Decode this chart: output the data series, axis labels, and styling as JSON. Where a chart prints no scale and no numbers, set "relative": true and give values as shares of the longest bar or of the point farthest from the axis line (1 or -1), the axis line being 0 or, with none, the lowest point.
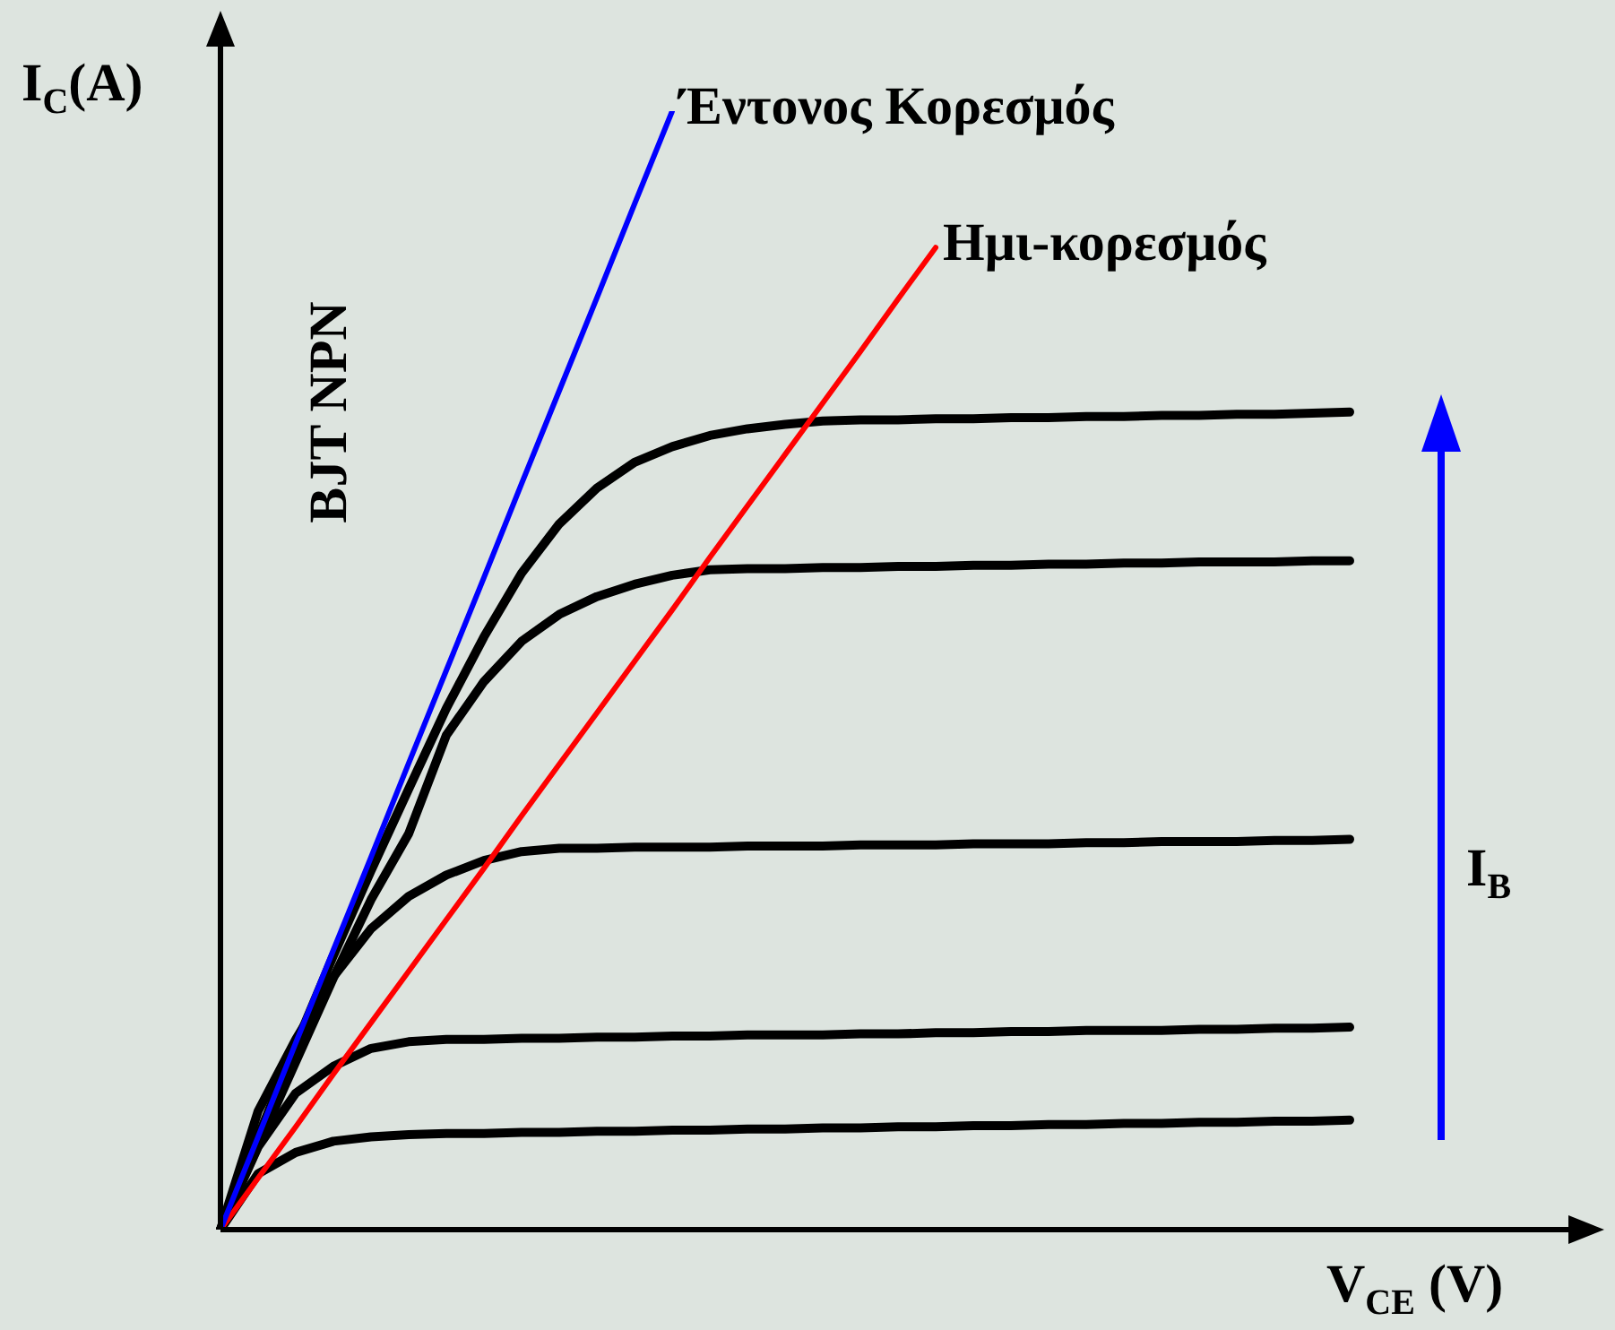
{
  "chart_data": {
    "type": "line",
    "relative": true,
    "xlabel": "V$_{CE}$ (V)",
    "ylabel": "I$_{C}$(A)",
    "legend": false,
    "tick_labels": false,
    "marker": "none",
    "categories": [
      null,
      null,
      null,
      null,
      null,
      null,
      null,
      null,
      null,
      null,
      null,
      null,
      null,
      null,
      null,
      null,
      null,
      null,
      null,
      null,
      null,
      null,
      null,
      null,
      null,
      null,
      null,
      null,
      null,
      null,
      null
    ],
    "series": [
      {
        "color": "#000000",
        "values": [
          0,
          0.083,
          0.165,
          0.245,
          0.321,
          0.394,
          0.466,
          0.53,
          0.587,
          0.631,
          0.663,
          0.686,
          0.7,
          0.71,
          0.716,
          0.72,
          0.723,
          0.724,
          0.724,
          0.725,
          0.725,
          0.726,
          0.726,
          0.727,
          0.727,
          0.728,
          0.728,
          0.729,
          0.729,
          0.73,
          0.731
        ]
      },
      {
        "color": "#000000",
        "values": [
          0,
          0.075,
          0.15,
          0.225,
          0.295,
          0.354,
          0.442,
          0.49,
          0.526,
          0.55,
          0.566,
          0.577,
          0.585,
          0.59,
          0.591,
          0.591,
          0.592,
          0.592,
          0.593,
          0.593,
          0.594,
          0.594,
          0.595,
          0.595,
          0.596,
          0.596,
          0.597,
          0.597,
          0.597,
          0.598,
          0.598
        ]
      },
      {
        "color": "#000000",
        "values": [
          0,
          0.106,
          0.17,
          0.226,
          0.269,
          0.298,
          0.317,
          0.33,
          0.338,
          0.341,
          0.341,
          0.342,
          0.342,
          0.342,
          0.343,
          0.343,
          0.343,
          0.344,
          0.344,
          0.344,
          0.345,
          0.345,
          0.345,
          0.346,
          0.346,
          0.347,
          0.347,
          0.347,
          0.348,
          0.348,
          0.349
        ]
      },
      {
        "color": "#000000",
        "values": [
          0,
          0.074,
          0.122,
          0.146,
          0.162,
          0.168,
          0.17,
          0.17,
          0.171,
          0.171,
          0.172,
          0.172,
          0.173,
          0.173,
          0.174,
          0.174,
          0.174,
          0.175,
          0.175,
          0.176,
          0.176,
          0.177,
          0.177,
          0.178,
          0.178,
          0.178,
          0.179,
          0.179,
          0.18,
          0.18,
          0.181
        ]
      },
      {
        "color": "#000000",
        "values": [
          0,
          0.05,
          0.069,
          0.079,
          0.083,
          0.085,
          0.086,
          0.086,
          0.087,
          0.087,
          0.088,
          0.088,
          0.089,
          0.089,
          0.09,
          0.09,
          0.091,
          0.091,
          0.092,
          0.092,
          0.093,
          0.093,
          0.094,
          0.094,
          0.095,
          0.095,
          0.096,
          0.096,
          0.097,
          0.097,
          0.098
        ]
      },
      {
        "name": "Έντονος Κορεσμός",
        "color": "#0000ff",
        "values": [
          0,
          0.083,
          0.167,
          0.25,
          0.333,
          0.417,
          0.5,
          0.583,
          0.667,
          0.75,
          0.833,
          0.917,
          1,
          null,
          null,
          null,
          null,
          null,
          null,
          null,
          null,
          null,
          null,
          null,
          null,
          null,
          null,
          null,
          null,
          null,
          null
        ]
      },
      {
        "name": "Ημι-κορεσμός",
        "color": "#ff0000",
        "values": [
          0,
          0.046,
          0.092,
          0.139,
          0.185,
          0.231,
          0.277,
          0.323,
          0.37,
          0.416,
          0.462,
          0.508,
          0.554,
          0.601,
          0.647,
          0.693,
          0.739,
          0.785,
          0.832,
          0.878,
          null,
          null,
          null,
          null,
          null,
          null,
          null,
          null,
          null,
          null,
          null
        ]
      }
    ],
    "annotations": [
      "BJT NPN",
      "I$_{B}$"
    ]
  }
}
